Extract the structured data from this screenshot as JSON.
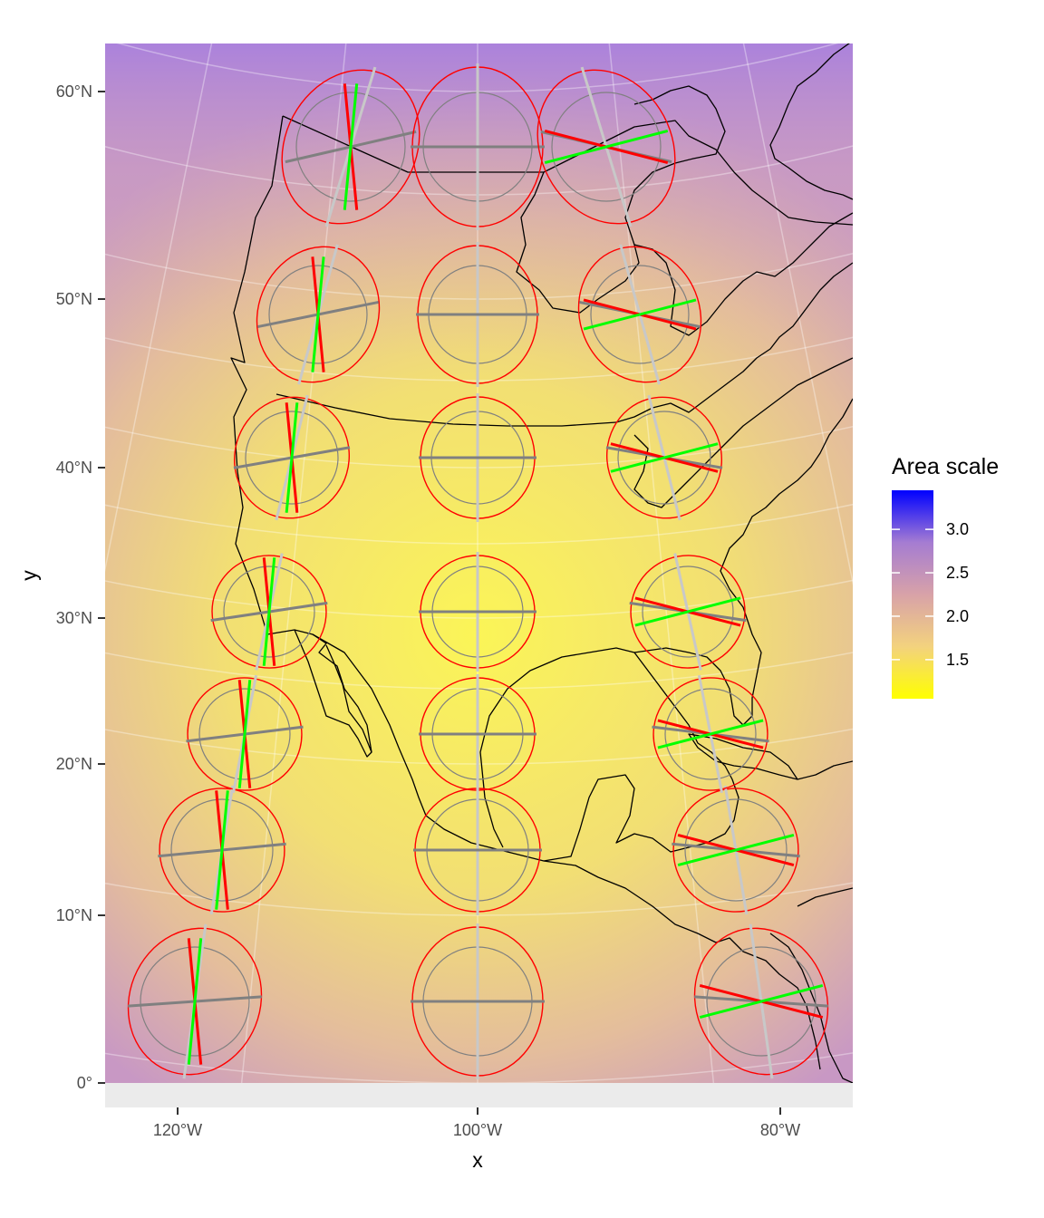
{
  "chart_data": {
    "type": "map",
    "projection": "Lambert conformal conic (distortion map with Tissot indicatrices)",
    "xlabel": "x",
    "ylabel": "y",
    "x_ticks": [
      "120°W",
      "100°W",
      "80°W"
    ],
    "y_ticks": [
      "0°",
      "10°N",
      "20°N",
      "30°N",
      "40°N",
      "50°N",
      "60°N"
    ],
    "legend": {
      "title": "Area scale",
      "position": "right",
      "ticks": [
        "1.5",
        "2.0",
        "2.5",
        "3.0"
      ],
      "tick_values": [
        1.5,
        2.0,
        2.5,
        3.0
      ],
      "range": [
        1.05,
        3.45
      ],
      "colors": {
        "low": "#FFFF00",
        "mid": "#D8A2A8",
        "high": "#0000FF"
      }
    },
    "indicatrix_colors": {
      "outer_ellipse": "#FF0000",
      "reference_circle": "#808080",
      "max_scale_axes": "#FF0000",
      "min_scale_axes": "#00FF00",
      "parallel": "#808080",
      "meridian": "#C8C8C8"
    },
    "indicatrix_longitudes": [
      "120°W",
      "100°W",
      "80°W"
    ],
    "indicatrix_latitudes": [
      "5°N",
      "14°N",
      "22°N",
      "30°N",
      "39°N",
      "47°N",
      "56°N"
    ],
    "grid": true
  }
}
